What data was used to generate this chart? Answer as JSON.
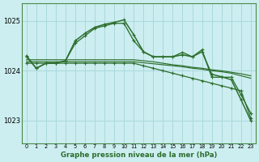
{
  "title": "Graphe pression niveau de la mer (hPa)",
  "bg_color": "#cceef0",
  "grid_color": "#aad8dc",
  "line_color": "#2d6e2d",
  "x_ticks": [
    0,
    1,
    2,
    3,
    4,
    5,
    6,
    7,
    8,
    9,
    10,
    11,
    12,
    13,
    14,
    15,
    16,
    17,
    18,
    19,
    20,
    21,
    22,
    23
  ],
  "ylim": [
    1022.55,
    1025.35
  ],
  "yticks": [
    1023,
    1024,
    1025
  ],
  "lines": [
    {
      "y": [
        1024.3,
        1024.05,
        1024.15,
        1024.15,
        1024.2,
        1024.6,
        1024.75,
        1024.87,
        1024.93,
        1024.97,
        1025.02,
        1024.72,
        1024.38,
        1024.28,
        1024.28,
        1024.28,
        1024.32,
        1024.28,
        1024.38,
        1023.93,
        1023.88,
        1023.82,
        1023.42,
        1023.0
      ],
      "lw": 1.1,
      "ms": 3.5,
      "marker": "+"
    },
    {
      "y": [
        1024.18,
        1024.18,
        1024.18,
        1024.18,
        1024.18,
        1024.18,
        1024.18,
        1024.18,
        1024.18,
        1024.18,
        1024.18,
        1024.18,
        1024.16,
        1024.14,
        1024.12,
        1024.1,
        1024.08,
        1024.05,
        1024.03,
        1024.0,
        1023.98,
        1023.95,
        1023.9,
        1023.85
      ],
      "lw": 0.85,
      "ms": 0,
      "marker": "None"
    },
    {
      "y": [
        1024.22,
        1024.22,
        1024.22,
        1024.22,
        1024.22,
        1024.22,
        1024.22,
        1024.22,
        1024.22,
        1024.22,
        1024.22,
        1024.22,
        1024.2,
        1024.18,
        1024.15,
        1024.12,
        1024.1,
        1024.07,
        1024.05,
        1024.02,
        1024.0,
        1023.97,
        1023.94,
        1023.9
      ],
      "lw": 0.85,
      "ms": 0,
      "marker": "None"
    },
    {
      "y": [
        1024.15,
        1024.15,
        1024.15,
        1024.15,
        1024.15,
        1024.15,
        1024.15,
        1024.15,
        1024.15,
        1024.15,
        1024.15,
        1024.15,
        1024.1,
        1024.05,
        1024.0,
        1023.95,
        1023.9,
        1023.85,
        1023.8,
        1023.75,
        1023.7,
        1023.65,
        1023.6,
        1023.05
      ],
      "lw": 0.9,
      "ms": 2.5,
      "marker": "+"
    },
    {
      "y": [
        1024.28,
        1024.05,
        1024.15,
        1024.15,
        1024.2,
        1024.55,
        1024.7,
        1024.85,
        1024.9,
        1024.95,
        1024.95,
        1024.6,
        1024.38,
        1024.28,
        1024.28,
        1024.28,
        1024.37,
        1024.28,
        1024.42,
        1023.87,
        1023.87,
        1023.87,
        1023.52,
        1023.15
      ],
      "lw": 0.95,
      "ms": 2.5,
      "marker": "+"
    }
  ]
}
